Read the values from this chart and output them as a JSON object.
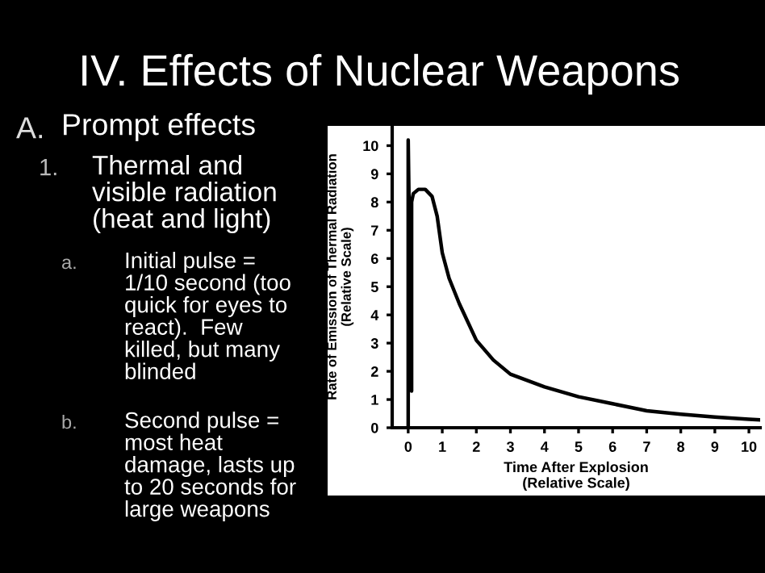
{
  "chart_data": {
    "type": "line",
    "title": "IV. Effects of Nuclear Weapons",
    "annotations": [
      "A.",
      "Prompt effects",
      "1.",
      "Thermal and\nvisible radiation\n(heat and light)",
      "a.",
      "Initial pulse =\n1/10 second (too\nquick for eyes to\nreact).  Few\nkilled, but many\nblinded",
      "b.",
      "Second pulse =\nmost heat\ndamage, lasts up\nto 20 seconds for\nlarge weapons"
    ],
    "xlabel": "Time After Explosion\n(Relative Scale)",
    "ylabel": "Rate of Emission of Thermal Radiation\n(Relative Scale)",
    "series": [
      {
        "color": "#000000",
        "x": [
          0,
          0,
          0.1,
          0.1,
          0.15,
          0.3,
          0.5,
          0.7,
          0.85,
          1.0,
          1.2,
          1.5,
          2,
          2.5,
          3,
          4,
          5,
          6,
          7,
          8,
          9,
          10,
          10.3
        ],
        "values": [
          0,
          10.2,
          1.3,
          8.0,
          8.3,
          8.45,
          8.45,
          8.2,
          7.5,
          6.2,
          5.3,
          4.4,
          3.1,
          2.4,
          1.9,
          1.45,
          1.1,
          0.85,
          0.6,
          0.48,
          0.38,
          0.3,
          0.28
        ]
      }
    ],
    "xlim": [
      -0.47,
      10.33
    ],
    "ylim": [
      0,
      10.7
    ],
    "xticks": [
      0,
      1,
      2,
      3,
      4,
      5,
      6,
      7,
      8,
      9,
      10
    ],
    "yticks": [
      0,
      1,
      2,
      3,
      4,
      5,
      6,
      7,
      8,
      9,
      10
    ],
    "grid": false,
    "legend": false,
    "marker": "none",
    "line_style": "solid"
  }
}
